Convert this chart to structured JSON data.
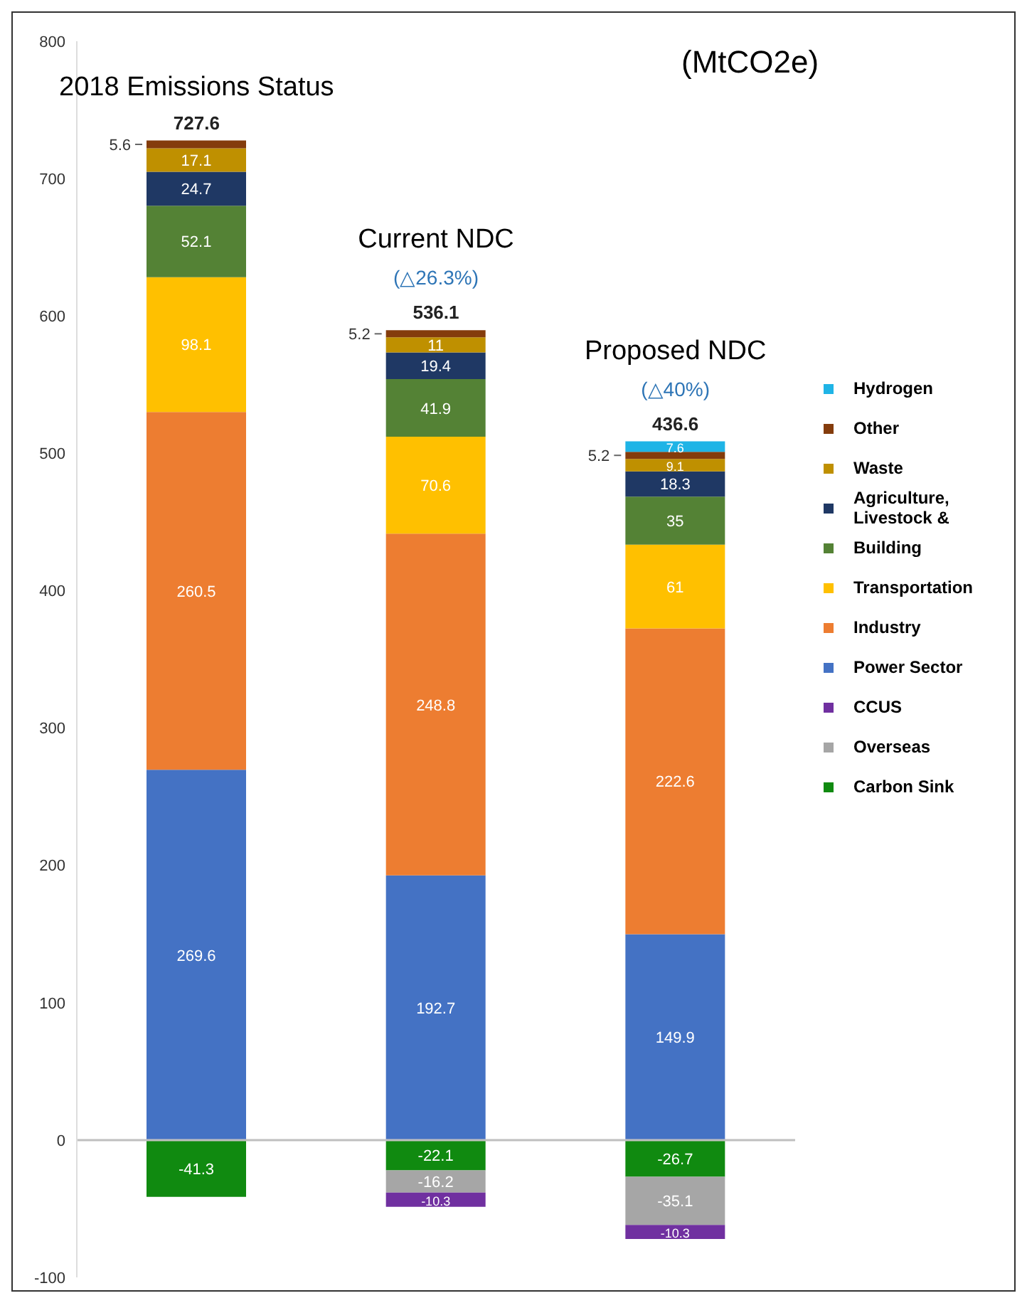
{
  "chart_data": {
    "type": "bar",
    "stacked": true,
    "categories": [
      "2018 Emissions Status",
      "Current NDC",
      "Proposed NDC"
    ],
    "series": [
      {
        "name": "Power Sector",
        "color": "#4472c4",
        "values": [
          269.6,
          192.7,
          149.9
        ]
      },
      {
        "name": "Industry",
        "color": "#ed7d31",
        "values": [
          260.5,
          248.8,
          222.6
        ]
      },
      {
        "name": "Transportation",
        "color": "#ffc000",
        "values": [
          98.1,
          70.6,
          61
        ]
      },
      {
        "name": "Building",
        "color": "#548235",
        "values": [
          52.1,
          41.9,
          35
        ]
      },
      {
        "name": "Agriculture, Livestock &",
        "color": "#1f3864",
        "values": [
          24.7,
          19.4,
          18.3
        ]
      },
      {
        "name": "Waste",
        "color": "#bf9000",
        "values": [
          17.1,
          11,
          9.1
        ]
      },
      {
        "name": "Other",
        "color": "#843c0c",
        "values": [
          5.6,
          5.2,
          5.2
        ]
      },
      {
        "name": "Hydrogen",
        "color": "#1fb4e6",
        "values": [
          null,
          null,
          7.6
        ]
      },
      {
        "name": "Carbon Sink",
        "color": "#108a10",
        "values": [
          -41.3,
          -22.1,
          -26.7
        ]
      },
      {
        "name": "Overseas",
        "color": "#a6a6a6",
        "values": [
          null,
          -16.2,
          -35.1
        ]
      },
      {
        "name": "CCUS",
        "color": "#7030a0",
        "values": [
          null,
          -10.3,
          -10.3
        ]
      }
    ],
    "annotations": [
      "(MtCO2e)",
      "727.6",
      "(△26.3%)",
      "536.1",
      "(△40%)",
      "436.6"
    ],
    "ylim": [
      -100,
      800
    ],
    "yticks": [
      -100,
      0,
      100,
      200,
      300,
      400,
      500,
      600,
      700,
      800
    ],
    "ref_lines": [
      {
        "axis": "y",
        "value": 0,
        "color": "#bfbfbf"
      }
    ],
    "data_labels": true,
    "grid": false,
    "legend": "right"
  }
}
